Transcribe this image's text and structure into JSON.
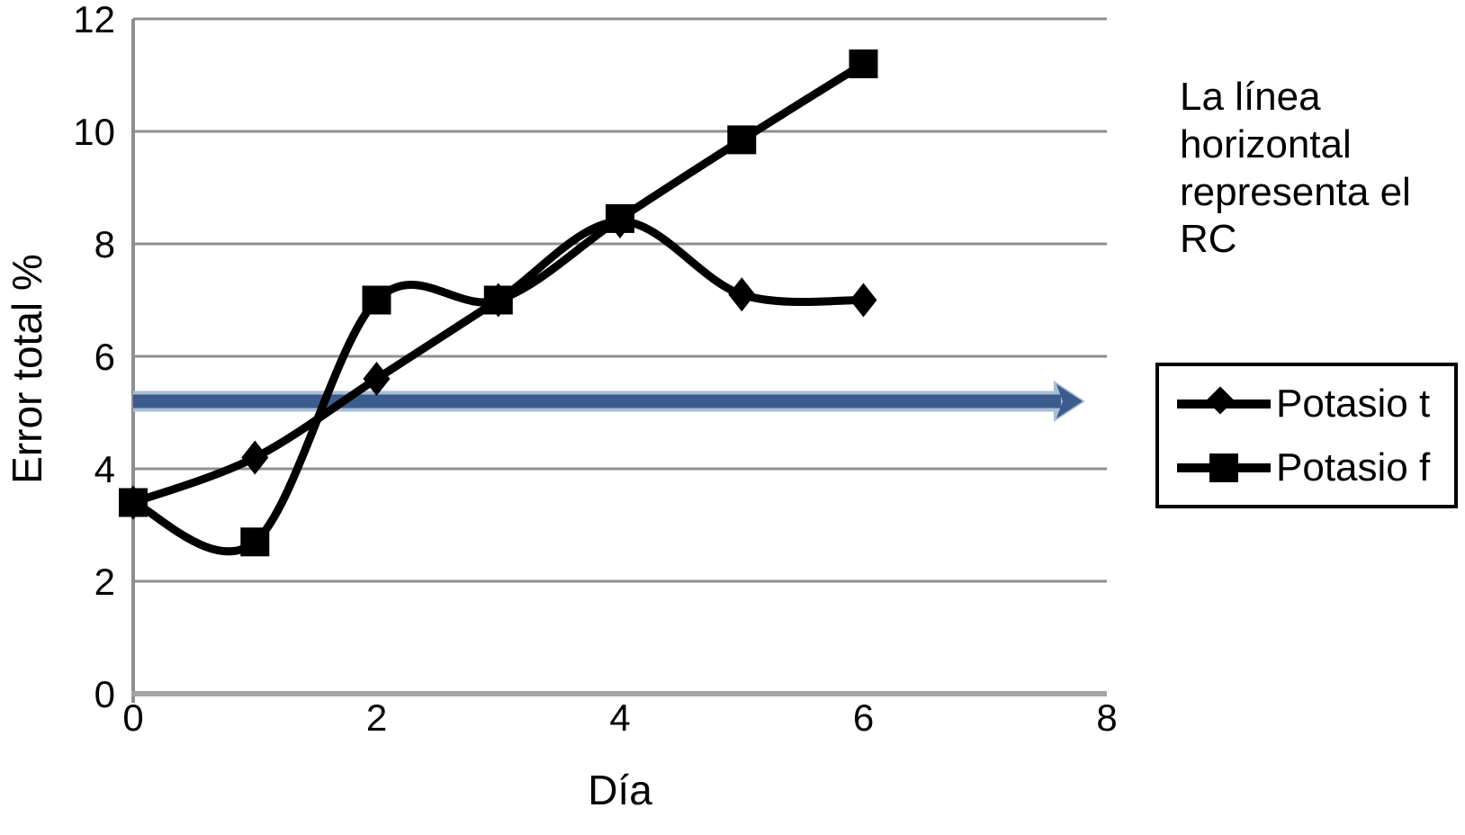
{
  "figure": {
    "annotation": "La línea horizontal representa el RC"
  },
  "chart_data": {
    "type": "line",
    "title": "",
    "xlabel": "Día",
    "ylabel": "Error total %",
    "x": [
      0,
      1,
      2,
      3,
      4,
      5,
      6
    ],
    "series": [
      {
        "name": "Potasio t",
        "marker": "diamond",
        "color": "#000000",
        "values": [
          3.4,
          4.2,
          5.6,
          7.0,
          8.4,
          7.1,
          7.0
        ]
      },
      {
        "name": "Potasio f",
        "marker": "square",
        "color": "#000000",
        "values": [
          3.4,
          2.7,
          7.0,
          7.0,
          8.45,
          9.85,
          11.2
        ]
      }
    ],
    "reference_line": {
      "y": 5.2,
      "meaning": "RC",
      "color": "#3b5c8c",
      "halo_color": "#a9bdd6",
      "arrow_tip_x": 7.8
    },
    "xlim": [
      0,
      8
    ],
    "ylim": [
      0,
      12
    ],
    "xticks": [
      0,
      2,
      4,
      6,
      8
    ],
    "yticks": [
      0,
      2,
      4,
      6,
      8,
      10,
      12
    ],
    "grid": "horizontal",
    "grid_color": "#8f8f8f",
    "axis_color": "#a3a3a3",
    "smoothed": true,
    "legend_position": "right"
  }
}
